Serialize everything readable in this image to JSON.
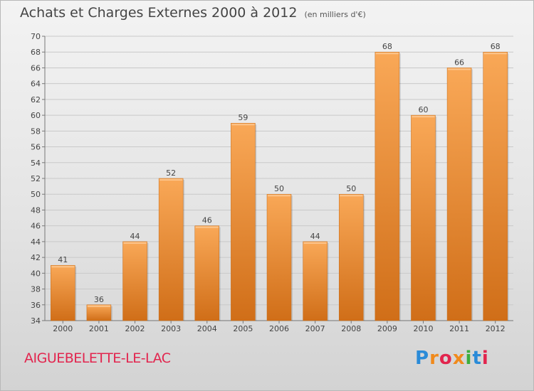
{
  "title": "Achats et Charges Externes 2000 à 2012",
  "subtitle": "(en milliers d'€)",
  "town": "AIGUEBELETTE-LE-LAC",
  "logo": {
    "letters": [
      "P",
      "r",
      "o",
      "x",
      "i",
      "t",
      "i"
    ],
    "colors": [
      "#2a8bd8",
      "#f08a1c",
      "#e2254e",
      "#f08a1c",
      "#3cae3c",
      "#2a8bd8",
      "#e2254e"
    ]
  },
  "colors": {
    "bar_top": "#f9a857",
    "bar_bottom": "#d06e18",
    "title": "#444444",
    "town": "#e2254e"
  },
  "chart_data": {
    "type": "bar",
    "categories": [
      "2000",
      "2001",
      "2002",
      "2003",
      "2004",
      "2005",
      "2006",
      "2007",
      "2008",
      "2009",
      "2010",
      "2011",
      "2012"
    ],
    "values": [
      41,
      36,
      44,
      52,
      46,
      59,
      50,
      44,
      50,
      68,
      60,
      66,
      68
    ],
    "data_labels": [
      "41",
      "36",
      "44",
      "52",
      "46",
      "59",
      "50",
      "44",
      "50",
      "68",
      "60",
      "66",
      "68"
    ],
    "title": "Achats et Charges Externes 2000 à 2012",
    "subtitle": "(en milliers d'€)",
    "ylim": [
      34,
      70
    ],
    "yticks": [
      34,
      36,
      38,
      40,
      42,
      44,
      46,
      48,
      50,
      52,
      54,
      56,
      58,
      60,
      62,
      64,
      66,
      68,
      70
    ],
    "grid": true
  }
}
